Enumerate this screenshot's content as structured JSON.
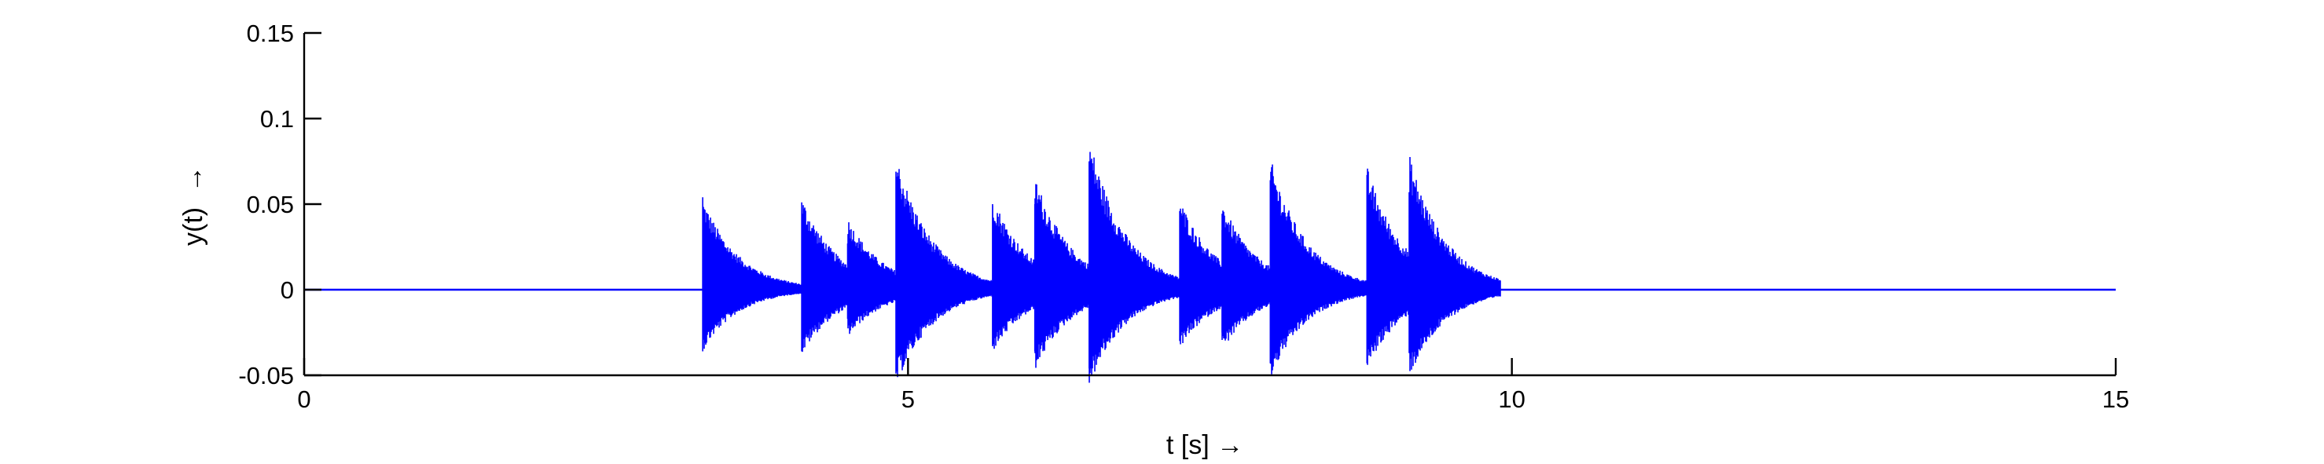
{
  "chart_data": {
    "type": "line",
    "title": "",
    "xlabel": "t [s] →",
    "ylabel": "y(t)  →",
    "xlim": [
      0,
      15
    ],
    "ylim": [
      -0.05,
      0.15
    ],
    "xticks": [
      0,
      5,
      10,
      15
    ],
    "xtick_labels": [
      "0",
      "5",
      "10",
      "15"
    ],
    "yticks": [
      -0.05,
      0,
      0.05,
      0.1,
      0.15
    ],
    "ytick_labels": [
      "-0.05",
      "0",
      "0.05",
      "0.1",
      "0.15"
    ],
    "grid": false,
    "legend": "none",
    "series": [
      {
        "color": "#0000ff",
        "description": "decaying oscillation bursts (percussive onsets)",
        "onsets": [
          {
            "t": 3.3,
            "peak_pos": 0.054,
            "peak_neg": -0.036
          },
          {
            "t": 4.12,
            "peak_pos": 0.051,
            "peak_neg": -0.036
          },
          {
            "t": 4.5,
            "peak_pos": 0.027,
            "peak_neg": -0.017
          },
          {
            "t": 4.9,
            "peak_pos": 0.069,
            "peak_neg": -0.049
          },
          {
            "t": 5.7,
            "peak_pos": 0.05,
            "peak_neg": -0.033
          },
          {
            "t": 6.05,
            "peak_pos": 0.05,
            "peak_neg": -0.036
          },
          {
            "t": 6.5,
            "peak_pos": 0.075,
            "peak_neg": -0.046
          },
          {
            "t": 7.25,
            "peak_pos": 0.046,
            "peak_neg": -0.03
          },
          {
            "t": 7.6,
            "peak_pos": 0.035,
            "peak_neg": -0.025
          },
          {
            "t": 8.0,
            "peak_pos": 0.064,
            "peak_neg": -0.043
          },
          {
            "t": 8.8,
            "peak_pos": 0.067,
            "peak_neg": -0.043
          },
          {
            "t": 9.15,
            "peak_pos": 0.057,
            "peak_neg": -0.037
          }
        ],
        "decay_time_s": 0.3,
        "end_of_activity_t": 9.9
      }
    ]
  }
}
